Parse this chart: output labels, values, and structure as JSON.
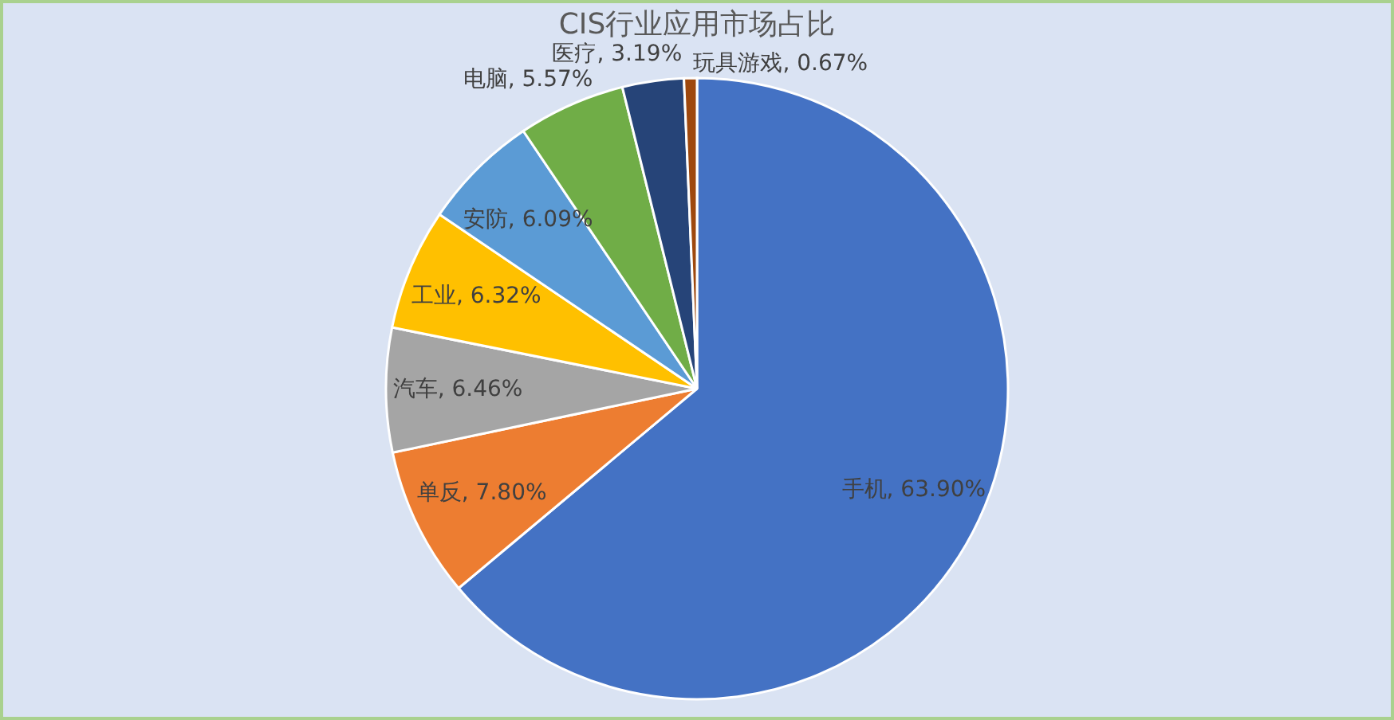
{
  "chart_data": {
    "type": "pie",
    "title": "CIS行业应用市场占比",
    "categories": [
      "手机",
      "单反",
      "汽车",
      "工业",
      "安防",
      "电脑",
      "医疗",
      "玩具游戏"
    ],
    "values": [
      63.9,
      7.8,
      6.46,
      6.32,
      6.09,
      5.57,
      3.19,
      0.67
    ],
    "colors": [
      "#4472c4",
      "#ed7d31",
      "#a5a5a5",
      "#ffc000",
      "#5b9bd5",
      "#70ad47",
      "#264478",
      "#9e480e"
    ],
    "value_labels": [
      "63.90%",
      "7.80%",
      "6.46%",
      "6.32%",
      "6.09%",
      "5.57%",
      "3.19%",
      "0.67%"
    ],
    "legend": false
  }
}
